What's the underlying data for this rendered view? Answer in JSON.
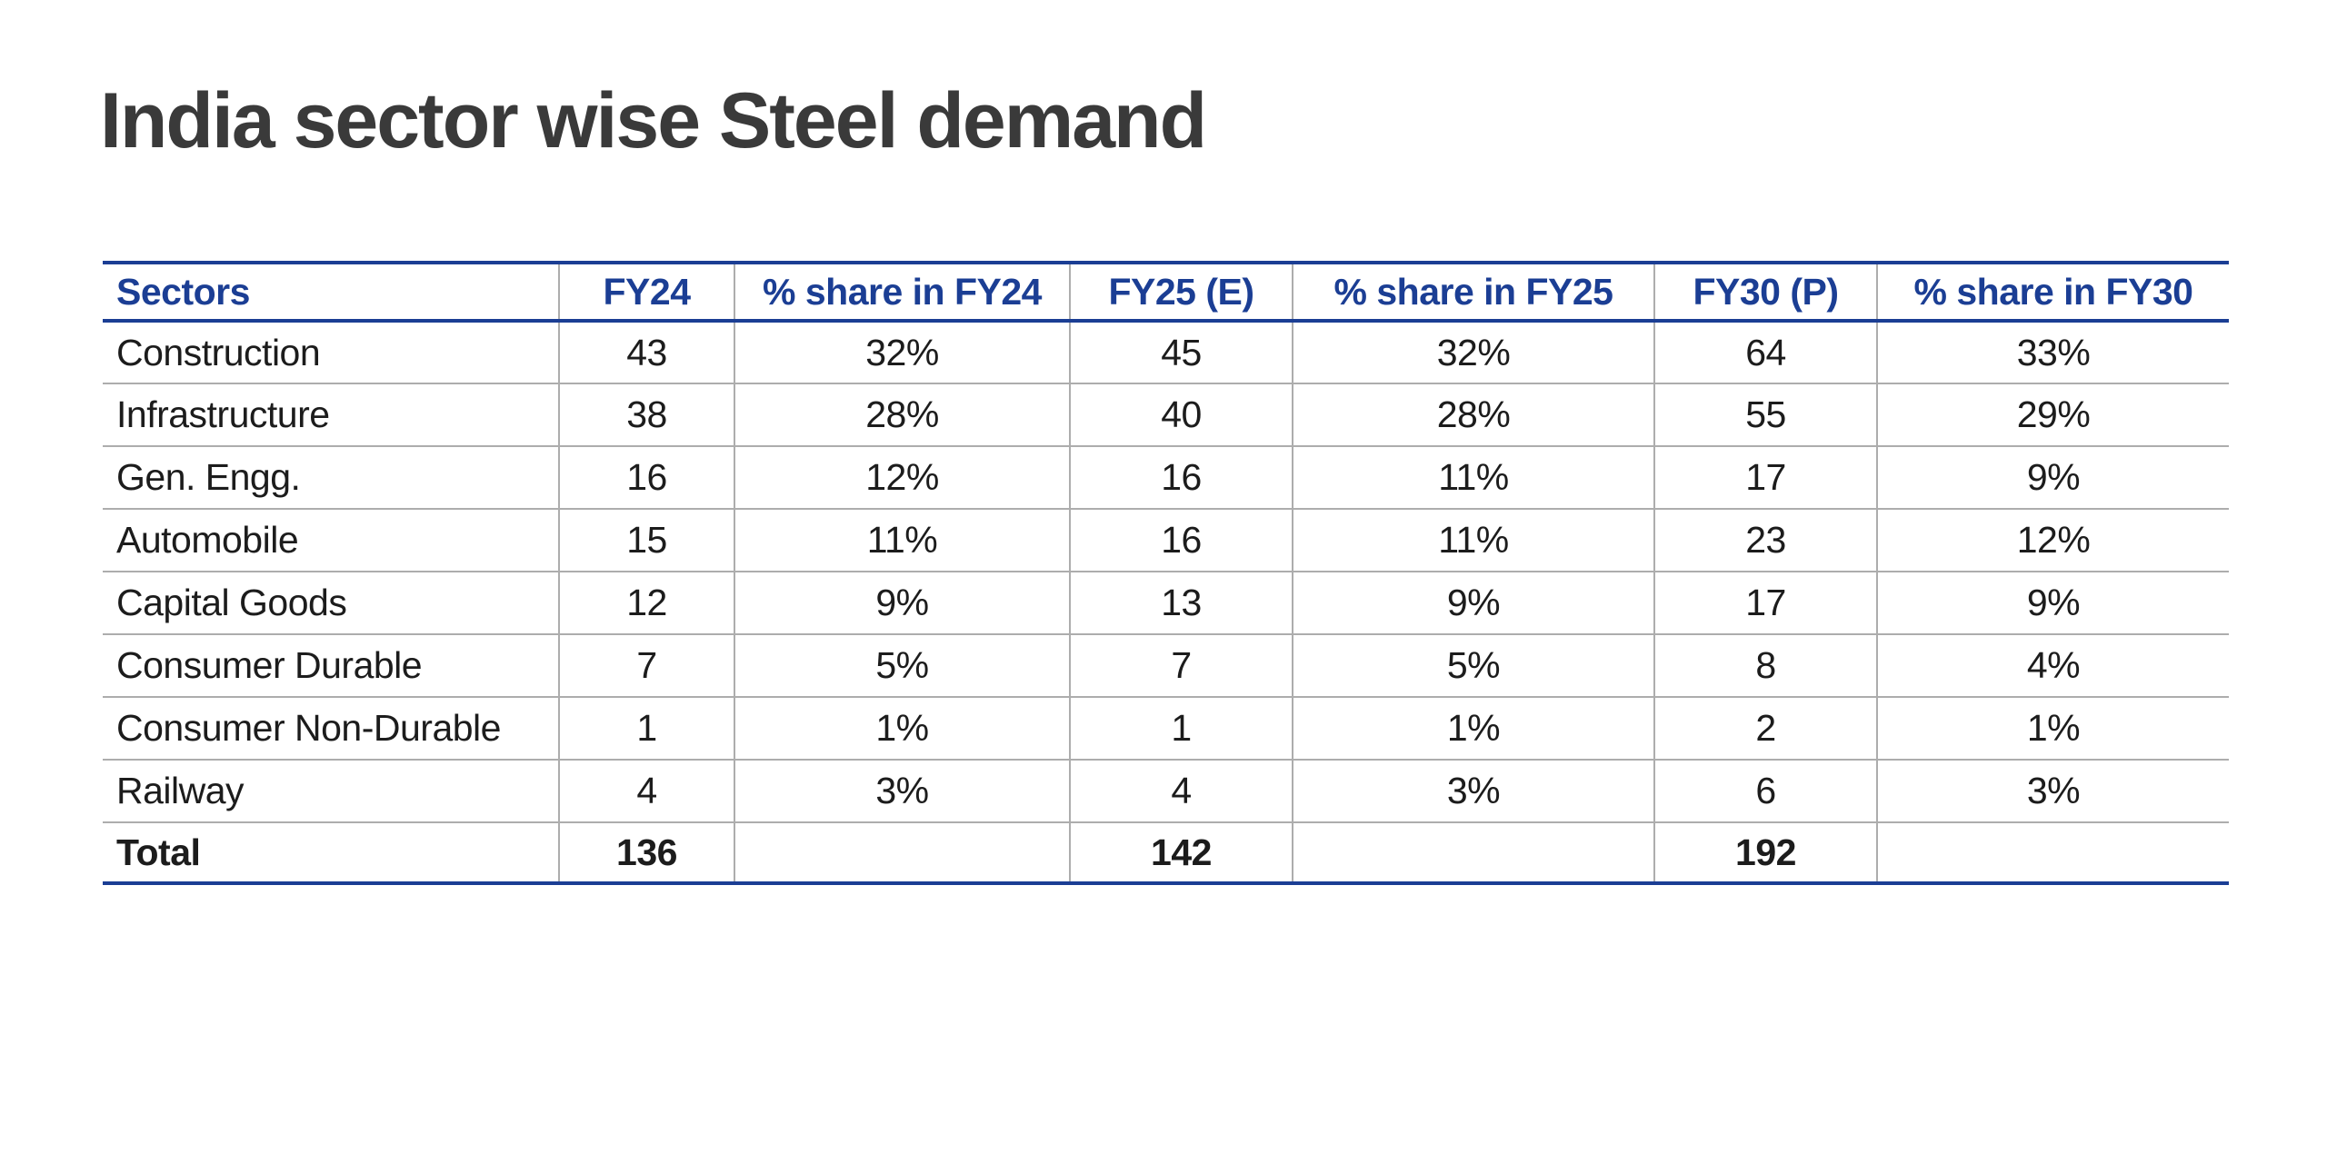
{
  "title": "India sector wise Steel demand",
  "colors": {
    "accent_blue": "#1b3e94",
    "grid_gray": "#adadad",
    "title_color": "#3a3a3a",
    "text_color": "#1c1c1c",
    "background": "#ffffff"
  },
  "table": {
    "headers": [
      "Sectors",
      "FY24",
      "% share in FY24",
      "FY25 (E)",
      "% share in FY25",
      "FY30 (P)",
      "% share in FY30"
    ],
    "rows": [
      [
        "Construction",
        "43",
        "32%",
        "45",
        "32%",
        "64",
        "33%"
      ],
      [
        "Infrastructure",
        "38",
        "28%",
        "40",
        "28%",
        "55",
        "29%"
      ],
      [
        "Gen. Engg.",
        "16",
        "12%",
        "16",
        "11%",
        "17",
        "9%"
      ],
      [
        "Automobile",
        "15",
        "11%",
        "16",
        "11%",
        "23",
        "12%"
      ],
      [
        "Capital Goods",
        "12",
        "9%",
        "13",
        "9%",
        "17",
        "9%"
      ],
      [
        "Consumer Durable",
        "7",
        "5%",
        "7",
        "5%",
        "8",
        "4%"
      ],
      [
        "Consumer Non-Durable",
        "1",
        "1%",
        "1",
        "1%",
        "2",
        "1%"
      ],
      [
        "Railway",
        "4",
        "3%",
        "4",
        "3%",
        "6",
        "3%"
      ]
    ],
    "total_row": [
      "Total",
      "136",
      "",
      "142",
      "",
      "192",
      ""
    ]
  },
  "chart_data": {
    "type": "table",
    "title": "India sector wise Steel demand",
    "columns": [
      "Sectors",
      "FY24",
      "% share in FY24",
      "FY25 (E)",
      "% share in FY25",
      "FY30 (P)",
      "% share in FY30"
    ],
    "rows": [
      {
        "sector": "Construction",
        "fy24": 43,
        "fy24_share_pct": 32,
        "fy25e": 45,
        "fy25_share_pct": 32,
        "fy30p": 64,
        "fy30_share_pct": 33
      },
      {
        "sector": "Infrastructure",
        "fy24": 38,
        "fy24_share_pct": 28,
        "fy25e": 40,
        "fy25_share_pct": 28,
        "fy30p": 55,
        "fy30_share_pct": 29
      },
      {
        "sector": "Gen. Engg.",
        "fy24": 16,
        "fy24_share_pct": 12,
        "fy25e": 16,
        "fy25_share_pct": 11,
        "fy30p": 17,
        "fy30_share_pct": 9
      },
      {
        "sector": "Automobile",
        "fy24": 15,
        "fy24_share_pct": 11,
        "fy25e": 16,
        "fy25_share_pct": 11,
        "fy30p": 23,
        "fy30_share_pct": 12
      },
      {
        "sector": "Capital Goods",
        "fy24": 12,
        "fy24_share_pct": 9,
        "fy25e": 13,
        "fy25_share_pct": 9,
        "fy30p": 17,
        "fy30_share_pct": 9
      },
      {
        "sector": "Consumer Durable",
        "fy24": 7,
        "fy24_share_pct": 5,
        "fy25e": 7,
        "fy25_share_pct": 5,
        "fy30p": 8,
        "fy30_share_pct": 4
      },
      {
        "sector": "Consumer Non-Durable",
        "fy24": 1,
        "fy24_share_pct": 1,
        "fy25e": 1,
        "fy25_share_pct": 1,
        "fy30p": 2,
        "fy30_share_pct": 1
      },
      {
        "sector": "Railway",
        "fy24": 4,
        "fy24_share_pct": 3,
        "fy25e": 4,
        "fy25_share_pct": 3,
        "fy30p": 6,
        "fy30_share_pct": 3
      }
    ],
    "totals": {
      "fy24": 136,
      "fy25e": 142,
      "fy30p": 192
    },
    "layout_hints": {
      "header_text_color": "#1b3e94",
      "thick_rules": "navy above/below header and at table bottom",
      "thin_rules": "gray between rows and columns",
      "grid": true
    }
  }
}
